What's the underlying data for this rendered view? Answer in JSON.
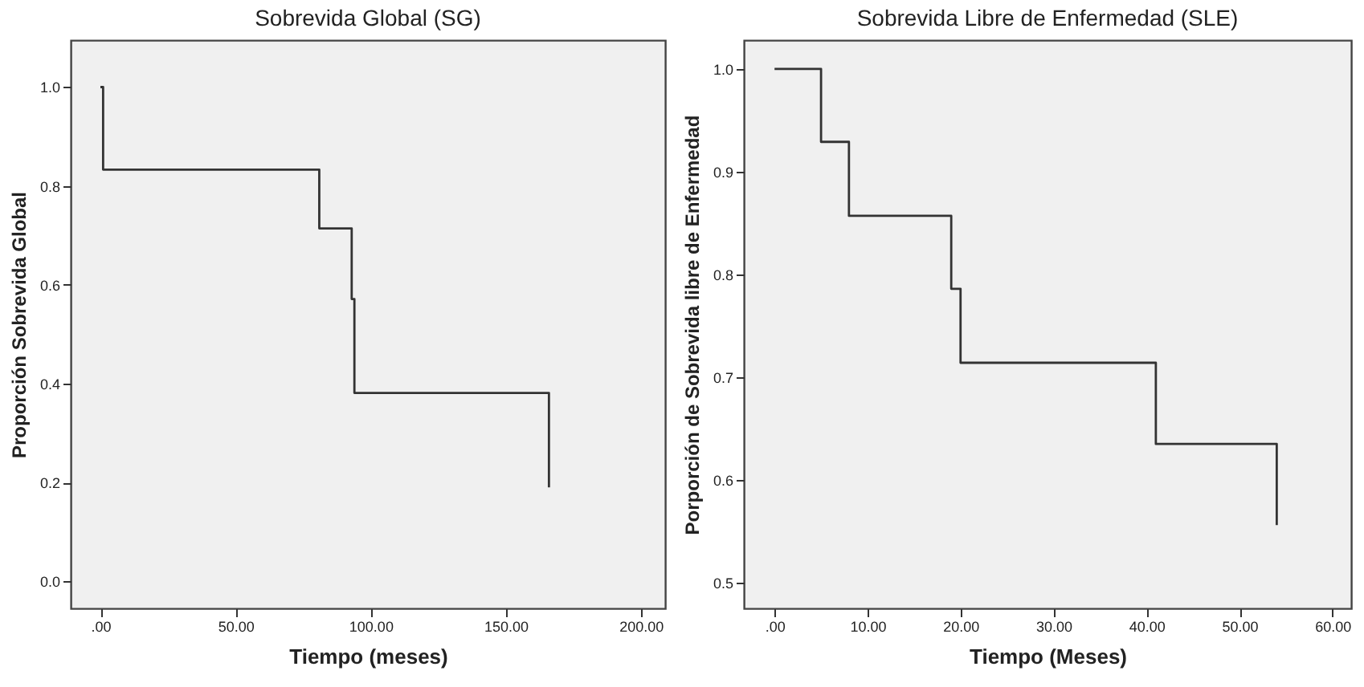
{
  "chart_data": [
    {
      "type": "step",
      "title": "Sobrevida Global (SG)",
      "xlabel": "Tiempo (meses)",
      "ylabel": "Proporción Sobrevida Global",
      "x": [
        0,
        1,
        81,
        93,
        94,
        166
      ],
      "series": [
        {
          "color": "#333333",
          "values": [
            1.0,
            0.833,
            0.714,
            0.571,
            0.381,
            0.19
          ]
        }
      ],
      "xlim": [
        -11,
        209
      ],
      "ylim": [
        -0.055,
        1.095
      ],
      "xticks": [
        {
          "value": 0,
          "label": ".00"
        },
        {
          "value": 50,
          "label": "50.00"
        },
        {
          "value": 100,
          "label": "100.00"
        },
        {
          "value": 150,
          "label": "150.00"
        },
        {
          "value": 200,
          "label": "200.00"
        }
      ],
      "yticks": [
        {
          "value": 0,
          "label": "0.0"
        },
        {
          "value": 0.2,
          "label": "0.2"
        },
        {
          "value": 0.4,
          "label": "0.4"
        },
        {
          "value": 0.6,
          "label": "0.6"
        },
        {
          "value": 0.8,
          "label": "0.8"
        },
        {
          "value": 1,
          "label": "1.0"
        }
      ]
    },
    {
      "type": "step",
      "title": "Sobrevida Libre de Enfermedad (SLE)",
      "xlabel": "Tiempo (Meses)",
      "ylabel": "Porporción de Sobrevida libre de Enfermedad",
      "x": [
        0,
        5,
        8,
        19,
        20,
        41,
        54
      ],
      "series": [
        {
          "color": "#333333",
          "values": [
            1.0,
            0.929,
            0.857,
            0.786,
            0.714,
            0.635,
            0.556
          ]
        }
      ],
      "xlim": [
        -3.3,
        62
      ],
      "ylim": [
        0.475,
        1.028
      ],
      "xticks": [
        {
          "value": 0,
          "label": ".00"
        },
        {
          "value": 10,
          "label": "10.00"
        },
        {
          "value": 20,
          "label": "20.00"
        },
        {
          "value": 30,
          "label": "30.00"
        },
        {
          "value": 40,
          "label": "40.00"
        },
        {
          "value": 50,
          "label": "50.00"
        },
        {
          "value": 60,
          "label": "60.00"
        }
      ],
      "yticks": [
        {
          "value": 0.5,
          "label": "0.5"
        },
        {
          "value": 0.6,
          "label": "0.6"
        },
        {
          "value": 0.7,
          "label": "0.7"
        },
        {
          "value": 0.8,
          "label": "0.8"
        },
        {
          "value": 0.9,
          "label": "0.9"
        },
        {
          "value": 1,
          "label": "1.0"
        }
      ]
    }
  ]
}
